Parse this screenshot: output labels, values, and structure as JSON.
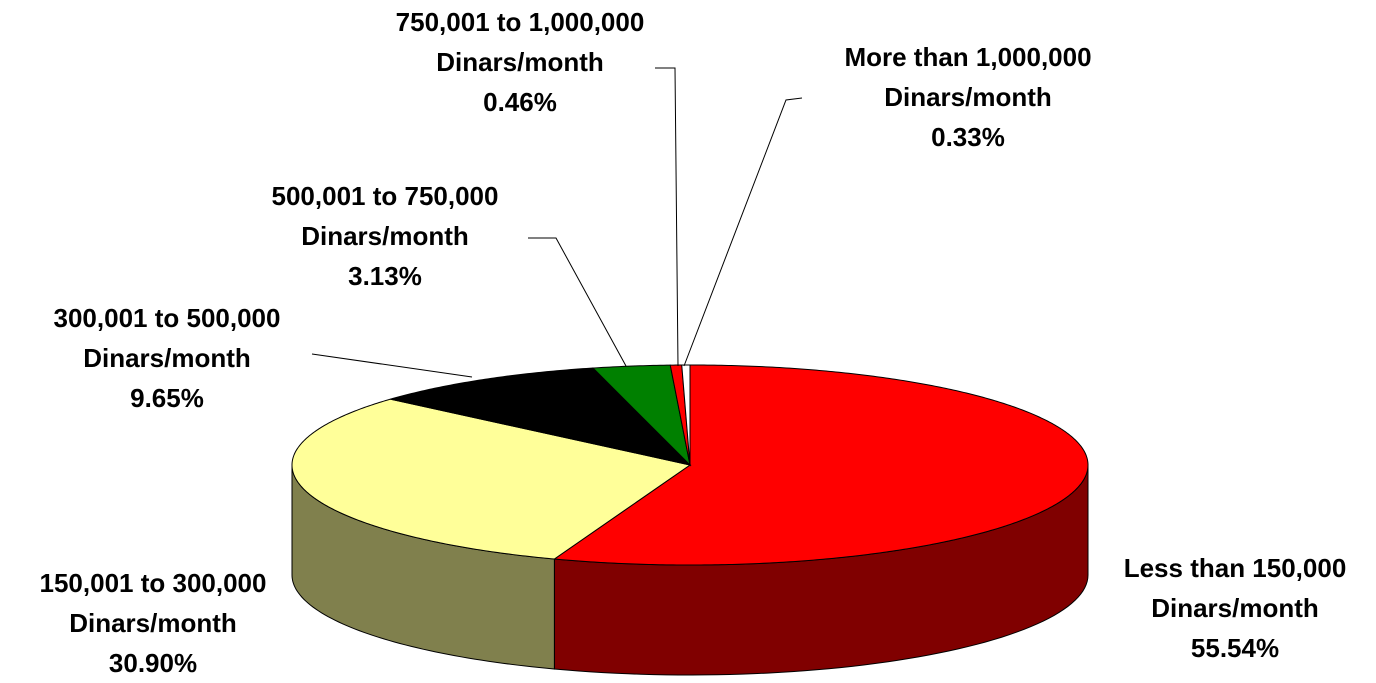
{
  "chart_data": {
    "type": "pie",
    "categories": [
      "Less than 150,000 Dinars/month",
      "150,001 to 300,000 Dinars/month",
      "300,001 to 500,000 Dinars/month",
      "500,001 to 750,000 Dinars/month",
      "750,001 to 1,000,000 Dinars/month",
      "More than 1,000,000 Dinars/month"
    ],
    "values": [
      55.54,
      30.9,
      9.65,
      3.13,
      0.46,
      0.33
    ],
    "value_labels": [
      "55.54%",
      "30.90%",
      "9.65%",
      "3.13%",
      "0.46%",
      "0.33%"
    ],
    "colors": [
      "#ff0000",
      "#ffff99",
      "#000000",
      "#008000",
      "#ff0000",
      "#ffffff"
    ]
  }
}
